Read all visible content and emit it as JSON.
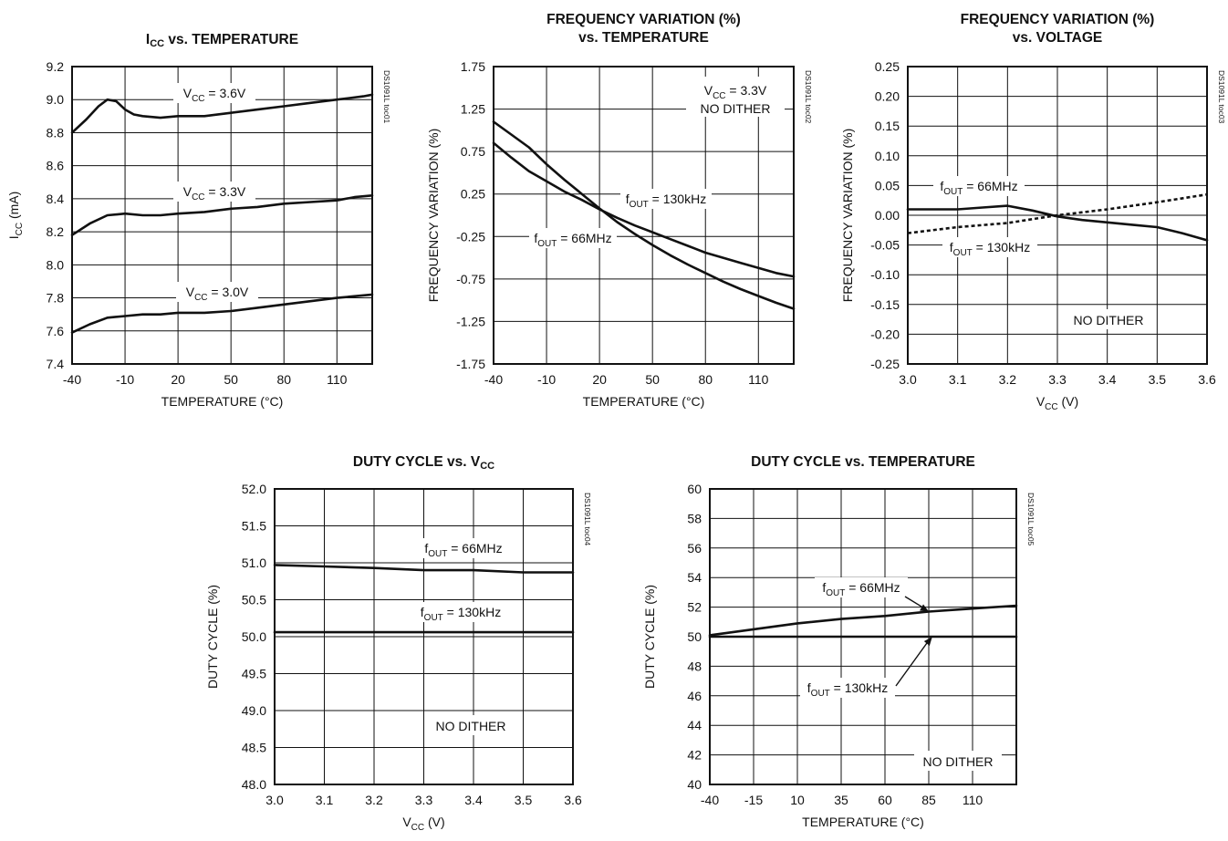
{
  "chart_data": [
    {
      "type": "line",
      "title_main": "I",
      "title_sub": "CC",
      "title_rest": " vs. TEMPERATURE",
      "doc_id": "DS1091L toc01",
      "xlabel": "TEMPERATURE (°C)",
      "ylabel_main": "I",
      "ylabel_sub": "CC",
      "ylabel_rest": " (mA)",
      "xlim": [
        -40,
        130
      ],
      "ylim": [
        7.4,
        9.2
      ],
      "xticks": [
        -40,
        -10,
        20,
        50,
        80,
        110
      ],
      "xtick_labels": [
        "-40",
        "-10",
        "20",
        "50",
        "80",
        "110"
      ],
      "yticks": [
        7.4,
        7.6,
        7.8,
        8.0,
        8.2,
        8.4,
        8.6,
        8.8,
        9.0,
        9.2
      ],
      "ytick_labels": [
        "7.4",
        "7.6",
        "7.8",
        "8.0",
        "8.2",
        "8.4",
        "8.6",
        "8.8",
        "9.0",
        "9.2"
      ],
      "series": [
        {
          "name": "VCC = 3.6V",
          "label_main": "V",
          "label_sub": "CC",
          "label_rest": " = 3.6V",
          "x": [
            -40,
            -32,
            -25,
            -20,
            -15,
            -10,
            -5,
            0,
            10,
            20,
            35,
            50,
            65,
            80,
            95,
            110,
            125,
            130
          ],
          "y": [
            8.8,
            8.88,
            8.96,
            9.0,
            8.99,
            8.94,
            8.91,
            8.9,
            8.89,
            8.9,
            8.9,
            8.92,
            8.94,
            8.96,
            8.98,
            9.0,
            9.02,
            9.03
          ]
        },
        {
          "name": "VCC = 3.3V",
          "label_main": "V",
          "label_sub": "CC",
          "label_rest": " = 3.3V",
          "x": [
            -40,
            -30,
            -20,
            -10,
            0,
            10,
            20,
            35,
            50,
            65,
            80,
            95,
            110,
            120,
            130
          ],
          "y": [
            8.18,
            8.25,
            8.3,
            8.31,
            8.3,
            8.3,
            8.31,
            8.32,
            8.34,
            8.35,
            8.37,
            8.38,
            8.39,
            8.41,
            8.42
          ]
        },
        {
          "name": "VCC = 3.0V",
          "label_main": "V",
          "label_sub": "CC",
          "label_rest": " = 3.0V",
          "x": [
            -40,
            -30,
            -20,
            -10,
            0,
            10,
            20,
            35,
            50,
            65,
            80,
            95,
            110,
            130
          ],
          "y": [
            7.59,
            7.64,
            7.68,
            7.69,
            7.7,
            7.7,
            7.71,
            7.71,
            7.72,
            7.74,
            7.76,
            7.78,
            7.8,
            7.82
          ]
        }
      ]
    },
    {
      "type": "line",
      "title_line1": "FREQUENCY VARIATION (%)",
      "title_line2": "vs. TEMPERATURE",
      "doc_id": "DS1091L toc02",
      "xlabel": "TEMPERATURE (°C)",
      "ylabel": "FREQUENCY VARIATION (%)",
      "xlim": [
        -40,
        130
      ],
      "ylim": [
        -1.75,
        1.75
      ],
      "xticks": [
        -40,
        -10,
        20,
        50,
        80,
        110
      ],
      "xtick_labels": [
        "-40",
        "-10",
        "20",
        "50",
        "80",
        "110"
      ],
      "yticks": [
        -1.75,
        -1.25,
        -0.75,
        -0.25,
        0.25,
        0.75,
        1.25,
        1.75
      ],
      "ytick_labels": [
        "-1.75",
        "-1.25",
        "-0.75",
        "-0.25",
        "0.25",
        "0.75",
        "1.25",
        "1.75"
      ],
      "annotation_line1_main": "V",
      "annotation_line1_sub": "CC",
      "annotation_line1_rest": " = 3.3V",
      "annotation_line2": "NO DITHER",
      "series": [
        {
          "name": "fOUT = 66MHz",
          "label_main": "f",
          "label_sub": "OUT",
          "label_rest": " = 66MHz",
          "x": [
            -40,
            -30,
            -20,
            -10,
            0,
            10,
            20,
            30,
            40,
            50,
            60,
            70,
            80,
            90,
            100,
            110,
            120,
            130
          ],
          "y": [
            1.1,
            0.95,
            0.8,
            0.6,
            0.42,
            0.25,
            0.08,
            -0.08,
            -0.22,
            -0.35,
            -0.47,
            -0.58,
            -0.68,
            -0.78,
            -0.87,
            -0.95,
            -1.03,
            -1.1
          ]
        },
        {
          "name": "fOUT = 130kHz",
          "label_main": "f",
          "label_sub": "OUT",
          "label_rest": " = 130kHz",
          "x": [
            -40,
            -30,
            -20,
            -10,
            0,
            10,
            20,
            30,
            40,
            50,
            60,
            70,
            80,
            90,
            100,
            110,
            120,
            130
          ],
          "y": [
            0.85,
            0.68,
            0.52,
            0.4,
            0.28,
            0.18,
            0.07,
            -0.03,
            -0.12,
            -0.2,
            -0.28,
            -0.36,
            -0.44,
            -0.5,
            -0.56,
            -0.62,
            -0.68,
            -0.72
          ]
        }
      ]
    },
    {
      "type": "line",
      "title_line1": "FREQUENCY VARIATION (%)",
      "title_line2": "vs. VOLTAGE",
      "doc_id": "DS1091L toc03",
      "xlabel_main": "V",
      "xlabel_sub": "CC",
      "xlabel_rest": " (V)",
      "ylabel": "FREQUENCY VARIATION (%)",
      "xlim": [
        3.0,
        3.6
      ],
      "ylim": [
        -0.25,
        0.25
      ],
      "xticks": [
        3.0,
        3.1,
        3.2,
        3.3,
        3.4,
        3.5,
        3.6
      ],
      "xtick_labels": [
        "3.0",
        "3.1",
        "3.2",
        "3.3",
        "3.4",
        "3.5",
        "3.6"
      ],
      "yticks": [
        -0.25,
        -0.2,
        -0.15,
        -0.1,
        -0.05,
        0.0,
        0.05,
        0.1,
        0.15,
        0.2,
        0.25
      ],
      "ytick_labels": [
        "-0.25",
        "-0.20",
        "-0.15",
        "-0.10",
        "-0.05",
        "0.00",
        "0.05",
        "0.10",
        "0.15",
        "0.20",
        "0.25"
      ],
      "annotation": "NO DITHER",
      "series": [
        {
          "name": "fOUT = 66MHz",
          "label_main": "f",
          "label_sub": "OUT",
          "label_rest": " = 66MHz",
          "style": "solid",
          "x": [
            3.0,
            3.05,
            3.1,
            3.15,
            3.2,
            3.25,
            3.3,
            3.35,
            3.4,
            3.45,
            3.5,
            3.55,
            3.6
          ],
          "y": [
            0.01,
            0.01,
            0.01,
            0.013,
            0.016,
            0.008,
            -0.002,
            -0.008,
            -0.012,
            -0.016,
            -0.02,
            -0.03,
            -0.042
          ]
        },
        {
          "name": "fOUT = 130kHz",
          "label_main": "f",
          "label_sub": "OUT",
          "label_rest": " = 130kHz",
          "style": "dashed",
          "x": [
            3.0,
            3.1,
            3.2,
            3.3,
            3.4,
            3.5,
            3.6
          ],
          "y": [
            -0.03,
            -0.02,
            -0.013,
            0.0,
            0.01,
            0.022,
            0.035
          ]
        }
      ]
    },
    {
      "type": "line",
      "title_main": "DUTY CYCLE vs. V",
      "title_sub": "CC",
      "doc_id": "DS1091L toc04",
      "xlabel_main": "V",
      "xlabel_sub": "CC",
      "xlabel_rest": " (V)",
      "ylabel": "DUTY CYCLE (%)",
      "xlim": [
        3.0,
        3.6
      ],
      "ylim": [
        48.0,
        52.0
      ],
      "xticks": [
        3.0,
        3.1,
        3.2,
        3.3,
        3.4,
        3.5,
        3.6
      ],
      "xtick_labels": [
        "3.0",
        "3.1",
        "3.2",
        "3.3",
        "3.4",
        "3.5",
        "3.6"
      ],
      "yticks": [
        48.0,
        48.5,
        49.0,
        49.5,
        50.0,
        50.5,
        51.0,
        51.5,
        52.0
      ],
      "ytick_labels": [
        "48.0",
        "48.5",
        "49.0",
        "49.5",
        "50.0",
        "50.5",
        "51.0",
        "51.5",
        "52.0"
      ],
      "annotation": "NO DITHER",
      "series": [
        {
          "name": "fOUT = 66MHz",
          "label_main": "f",
          "label_sub": "OUT",
          "label_rest": " = 66MHz",
          "x": [
            3.0,
            3.1,
            3.2,
            3.3,
            3.4,
            3.5,
            3.6
          ],
          "y": [
            50.97,
            50.95,
            50.93,
            50.9,
            50.9,
            50.87,
            50.87
          ]
        },
        {
          "name": "fOUT = 130kHz",
          "label_main": "f",
          "label_sub": "OUT",
          "label_rest": " = 130kHz",
          "x": [
            3.0,
            3.6
          ],
          "y": [
            50.06,
            50.06
          ]
        }
      ]
    },
    {
      "type": "line",
      "title": "DUTY CYCLE vs. TEMPERATURE",
      "doc_id": "DS1091L toc05",
      "xlabel": "TEMPERATURE (°C)",
      "ylabel": "DUTY CYCLE (%)",
      "xlim": [
        -40,
        135
      ],
      "ylim": [
        40,
        60
      ],
      "xticks": [
        -40,
        -15,
        10,
        35,
        60,
        85,
        110
      ],
      "xtick_labels": [
        "-40",
        "-15",
        "10",
        "35",
        "60",
        "85",
        "110"
      ],
      "yticks": [
        40,
        42,
        44,
        46,
        48,
        50,
        52,
        54,
        56,
        58,
        60
      ],
      "ytick_labels": [
        "40",
        "42",
        "44",
        "46",
        "48",
        "50",
        "52",
        "54",
        "56",
        "58",
        "60"
      ],
      "annotation": "NO DITHER",
      "series": [
        {
          "name": "fOUT = 66MHz",
          "label_main": "f",
          "label_sub": "OUT",
          "label_rest": " = 66MHz",
          "x": [
            -40,
            -15,
            10,
            35,
            60,
            85,
            110,
            135
          ],
          "y": [
            50.1,
            50.5,
            50.9,
            51.2,
            51.4,
            51.7,
            51.9,
            52.1
          ]
        },
        {
          "name": "fOUT = 130kHz",
          "label_main": "f",
          "label_sub": "OUT",
          "label_rest": " = 130kHz",
          "x": [
            -40,
            135
          ],
          "y": [
            50.0,
            50.0
          ]
        }
      ]
    }
  ]
}
